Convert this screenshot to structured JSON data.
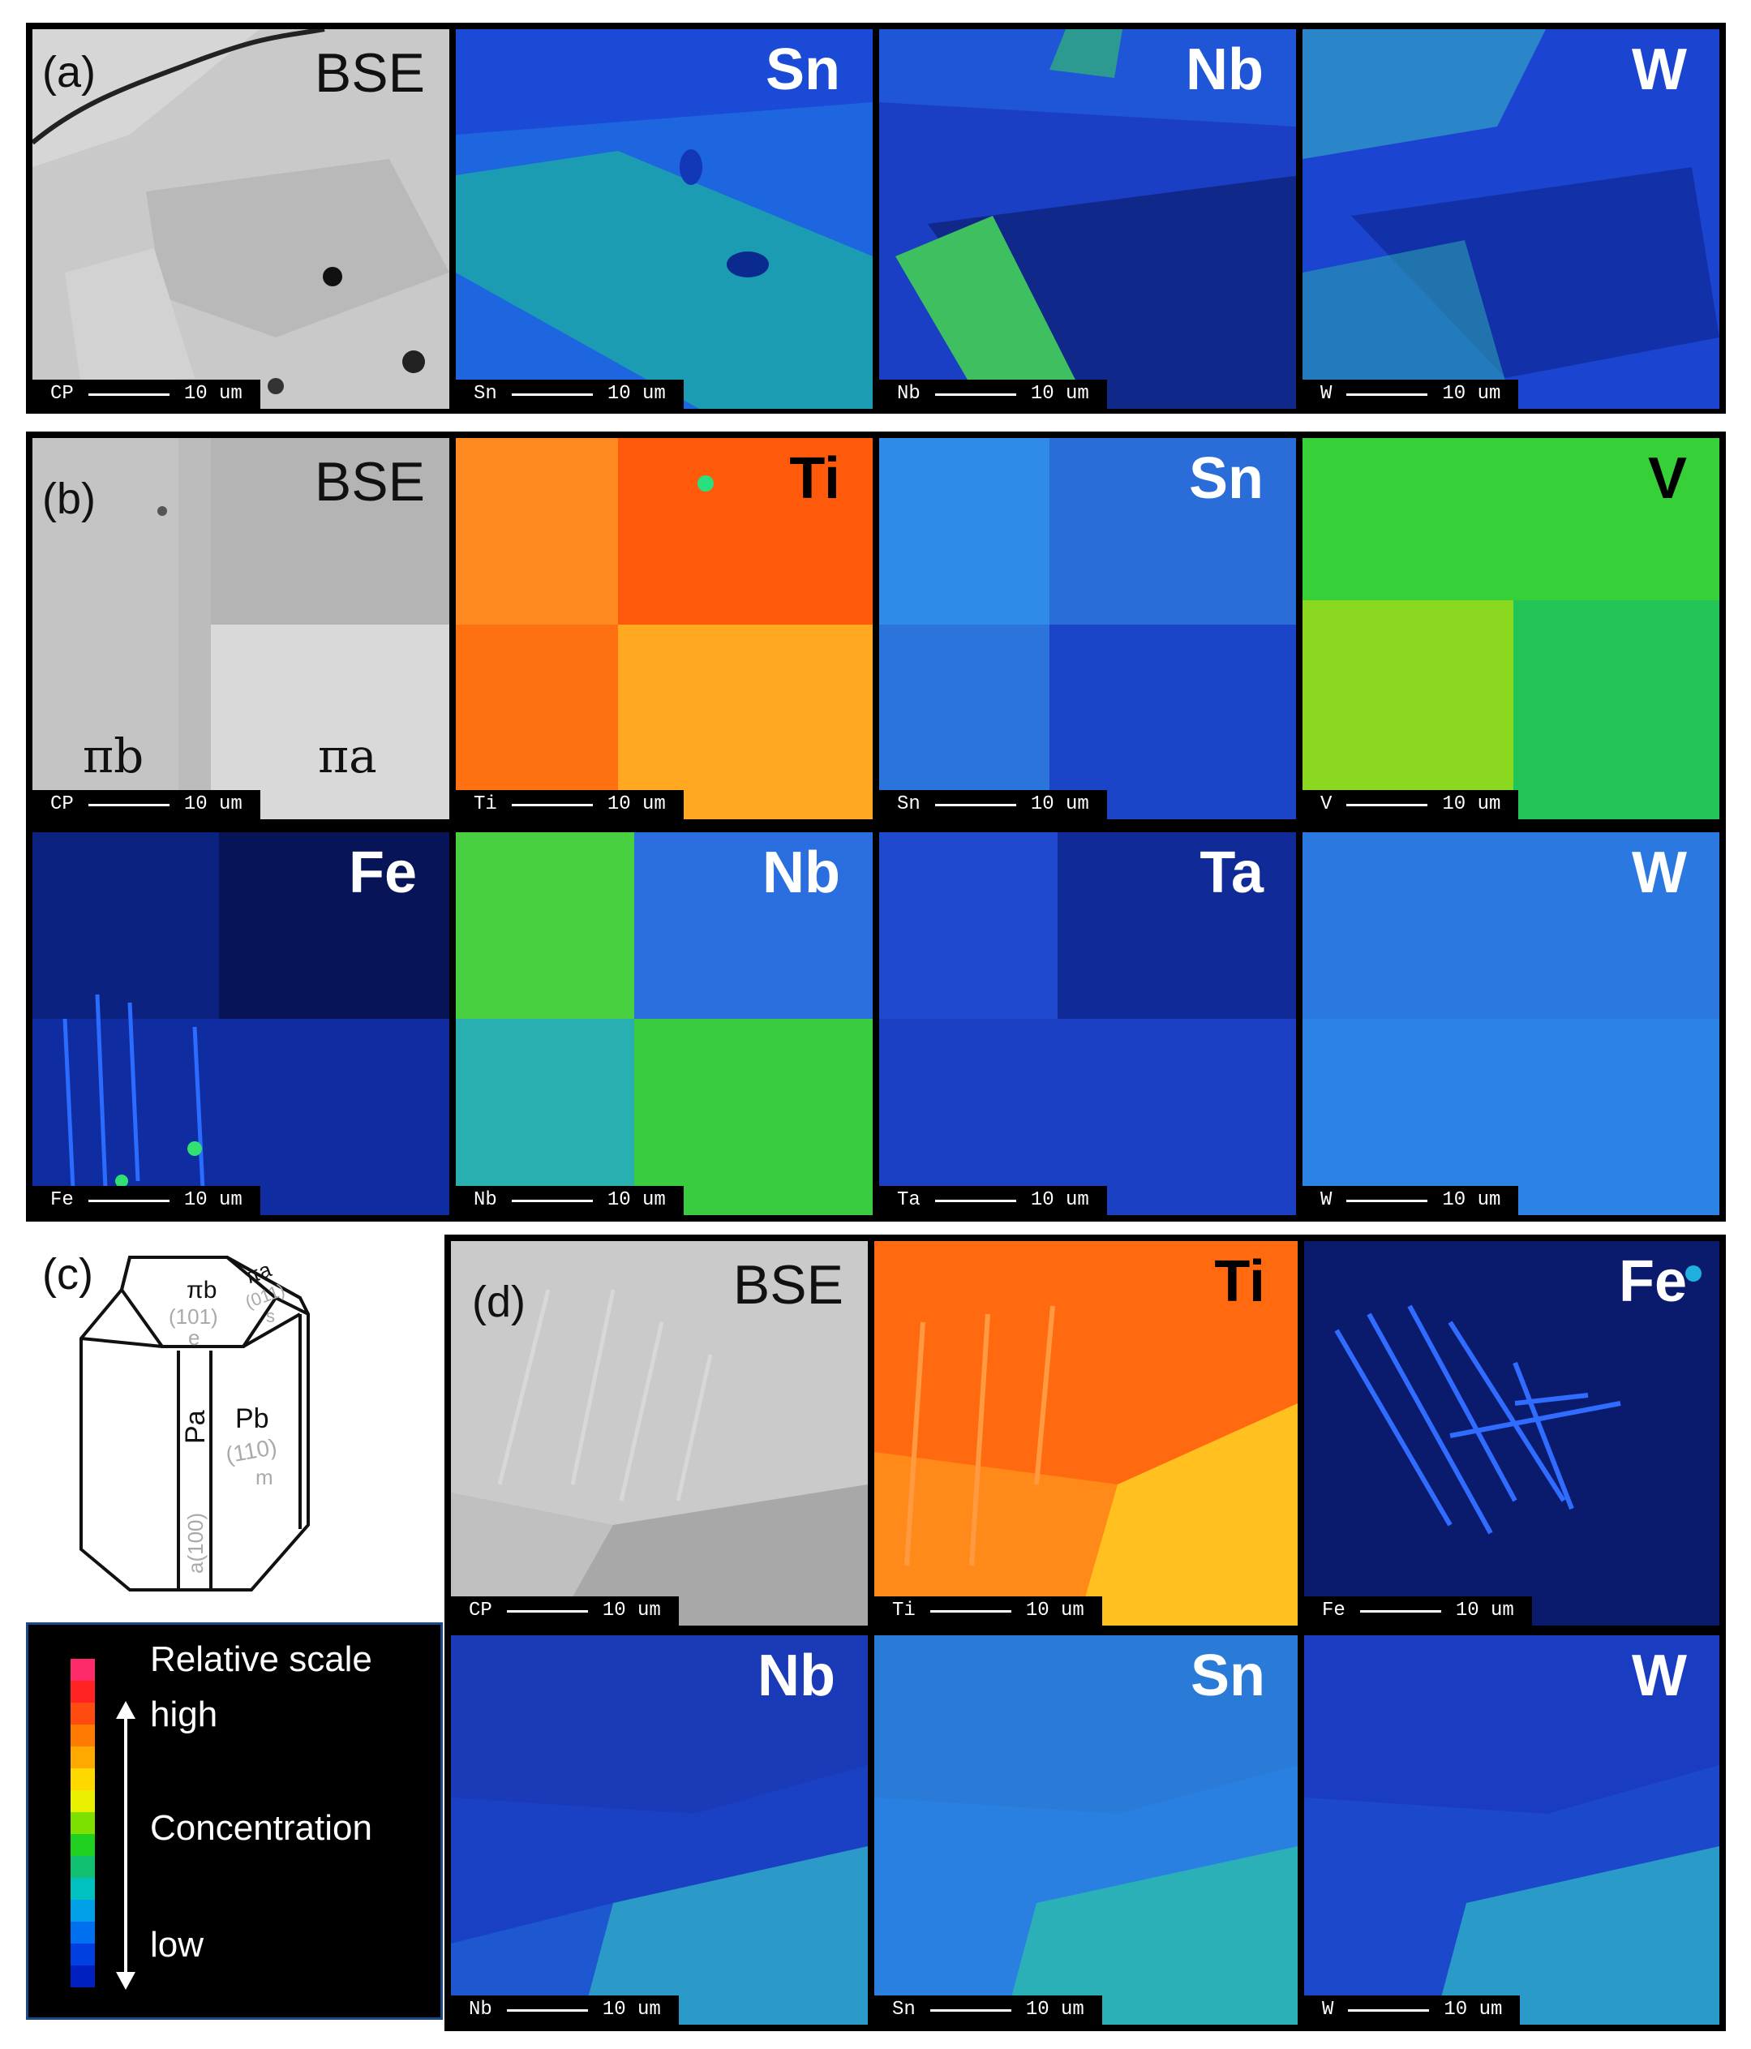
{
  "panels": {
    "a": {
      "label": "(a)",
      "maps": [
        {
          "title": "BSE",
          "scale_element": "CP",
          "scale_value": "10 um"
        },
        {
          "title": "Sn",
          "scale_element": "Sn",
          "scale_value": "10 um"
        },
        {
          "title": "Nb",
          "scale_element": "Nb",
          "scale_value": "10 um"
        },
        {
          "title": "W",
          "scale_element": "W",
          "scale_value": "10 um"
        }
      ]
    },
    "b": {
      "label": "(b)",
      "domain_labels": [
        "πb",
        "πa"
      ],
      "maps": [
        {
          "title": "BSE",
          "scale_element": "CP",
          "scale_value": "10 um"
        },
        {
          "title": "Ti",
          "scale_element": "Ti",
          "scale_value": "10 um"
        },
        {
          "title": "Sn",
          "scale_element": "Sn",
          "scale_value": "10 um"
        },
        {
          "title": "V",
          "scale_element": "V",
          "scale_value": "10 um"
        },
        {
          "title": "Fe",
          "scale_element": "Fe",
          "scale_value": "10 um"
        },
        {
          "title": "Nb",
          "scale_element": "Nb",
          "scale_value": "10 um"
        },
        {
          "title": "Ta",
          "scale_element": "Ta",
          "scale_value": "10 um"
        },
        {
          "title": "W",
          "scale_element": "W",
          "scale_value": "10 um"
        }
      ]
    },
    "c": {
      "label": "(c)",
      "faces": {
        "pi_b": "πb",
        "pi_b_index": "(101)",
        "pi_b_letter": "e",
        "pi_a": "πa",
        "pi_a_index": "(011)",
        "pi_a_letter": "s",
        "p_b": "Pb",
        "p_b_index": "(110)",
        "p_b_letter": "m",
        "p_a": "Pa",
        "p_a_index": "a(100)"
      }
    },
    "d": {
      "label": "(d)",
      "maps": [
        {
          "title": "BSE",
          "scale_element": "CP",
          "scale_value": "10 um"
        },
        {
          "title": "Ti",
          "scale_element": "Ti",
          "scale_value": "10 um"
        },
        {
          "title": "Fe",
          "scale_element": "Fe",
          "scale_value": "10 um"
        },
        {
          "title": "Nb",
          "scale_element": "Nb",
          "scale_value": "10 um"
        },
        {
          "title": "Sn",
          "scale_element": "Sn",
          "scale_value": "10 um"
        },
        {
          "title": "W",
          "scale_element": "W",
          "scale_value": "10 um"
        }
      ]
    }
  },
  "legend": {
    "title": "Relative scale",
    "high": "high",
    "middle": "Concentration",
    "low": "low",
    "colors": [
      "#ff2a6a",
      "#ff2222",
      "#ff4a10",
      "#ff7a00",
      "#ffa800",
      "#ffd800",
      "#e8f000",
      "#7ee000",
      "#20d020",
      "#10c070",
      "#00c0c0",
      "#00a0e8",
      "#0070f0",
      "#0040e0",
      "#0020c0"
    ]
  },
  "colors": {
    "bse_light": "#c8c8c8",
    "ti_orange": "#ff6a10",
    "v_green": "#40d040",
    "map_blue": "#1a4adf",
    "fe_dark": "#0a1870"
  }
}
